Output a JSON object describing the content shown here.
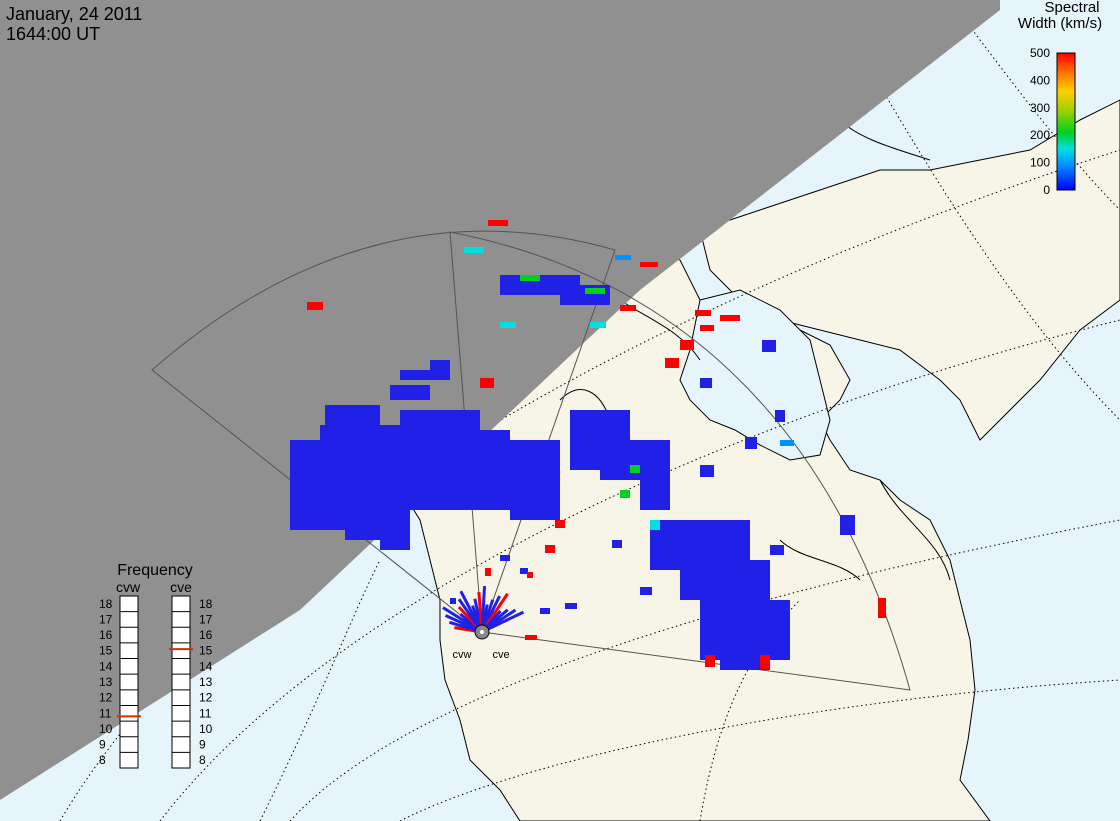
{
  "header": {
    "date": "January, 24 2011",
    "time": "1644:00 UT"
  },
  "colorbar": {
    "title_line1": "Spectral",
    "title_line2": "Width (km/s)",
    "ticks": [
      "500",
      "400",
      "300",
      "200",
      "100",
      "0"
    ],
    "range": [
      0,
      500
    ],
    "colors": [
      "#0000ff",
      "#0090ff",
      "#00e0e0",
      "#00d020",
      "#a0d000",
      "#ffd000",
      "#ff7000",
      "#ff0000"
    ]
  },
  "frequency_panel": {
    "title": "Frequency",
    "columns": [
      {
        "label": "cvw",
        "value_mhz": 10.8
      },
      {
        "label": "cve",
        "value_mhz": 15.1
      }
    ],
    "ticks": [
      "18",
      "17",
      "16",
      "15",
      "14",
      "13",
      "12",
      "11",
      "10",
      "9",
      "8"
    ],
    "range": [
      8,
      18
    ],
    "marker_color": "#d03000"
  },
  "radars": [
    {
      "label": "cvw"
    },
    {
      "label": "cve"
    }
  ],
  "colors": {
    "night_shade": "#909090",
    "ocean": "#e6f4fb",
    "land": "#f7f5e8",
    "coast": "#000000",
    "fov_outline": "#555555"
  }
}
